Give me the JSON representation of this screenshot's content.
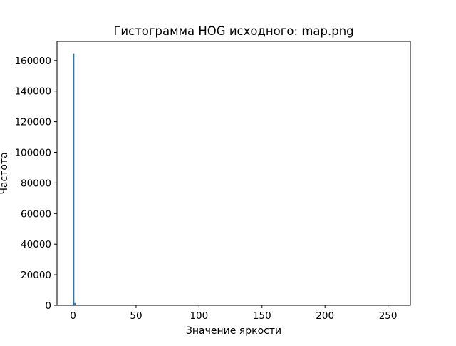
{
  "chart_data": {
    "type": "bar",
    "title": "Гистограмма HOG исходного: map.png",
    "xlabel": "Значение яркости",
    "ylabel": "Частота",
    "xlim": [
      -12.75,
      267.75
    ],
    "ylim": [
      0,
      172500
    ],
    "xticks": [
      0,
      50,
      100,
      150,
      200,
      250
    ],
    "yticks": [
      0,
      20000,
      40000,
      60000,
      80000,
      100000,
      120000,
      140000,
      160000
    ],
    "bin_width": 1,
    "bars": [
      {
        "x": 0,
        "value": 164700
      },
      {
        "x": 1,
        "value": 1500
      }
    ],
    "bar_color": "#1f77b4",
    "grid": false,
    "legend": "none"
  }
}
